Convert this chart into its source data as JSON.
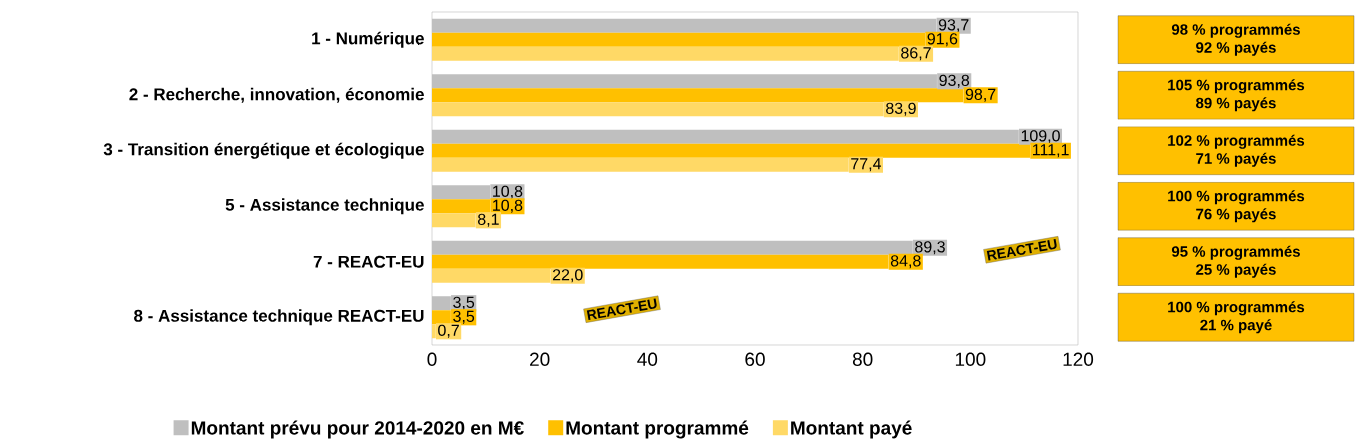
{
  "chart_data": {
    "type": "bar",
    "orientation": "horizontal",
    "categories": [
      "1 - Numérique",
      "2 - Recherche, innovation, économie",
      "3 - Transition énergétique et écologique",
      "5 - Assistance technique",
      "7 - REACT-EU",
      "8 - Assistance technique REACT-EU"
    ],
    "series": [
      {
        "name": "Montant prévu pour 2014-2020 en M€",
        "color": "#bfbfbf",
        "values": [
          93.7,
          93.8,
          109.0,
          10.8,
          89.3,
          3.5
        ],
        "value_labels": [
          "93,7",
          "93,8",
          "109,0",
          "10,8",
          "89,3",
          "3,5"
        ]
      },
      {
        "name": "Montant programmé",
        "color": "#ffc000",
        "values": [
          91.6,
          98.7,
          111.1,
          10.8,
          84.8,
          3.5
        ],
        "value_labels": [
          "91,6",
          "98,7",
          "111,1",
          "10,8",
          "84,8",
          "3,5"
        ]
      },
      {
        "name": "Montant payé",
        "color": "#ffd966",
        "values": [
          86.7,
          83.9,
          77.4,
          8.1,
          22.0,
          0.7
        ],
        "value_labels": [
          "86,7",
          "83,9",
          "77,4",
          "8,1",
          "22,0",
          "0,7"
        ]
      }
    ],
    "xlim": [
      0,
      120
    ],
    "xticks": [
      0,
      20,
      40,
      60,
      80,
      100,
      120
    ],
    "legend": "bottom",
    "annotations": [
      "98 % programmés",
      "92 % payés",
      "105 % programmés",
      "89 % payés",
      "102 % programmés",
      "71 % payés",
      "100 % programmés",
      "76 % payés",
      "95 % programmés",
      "25 % payés",
      "100 % programmés",
      "21 % payé",
      "REACT-EU",
      "REACT-EU"
    ]
  }
}
